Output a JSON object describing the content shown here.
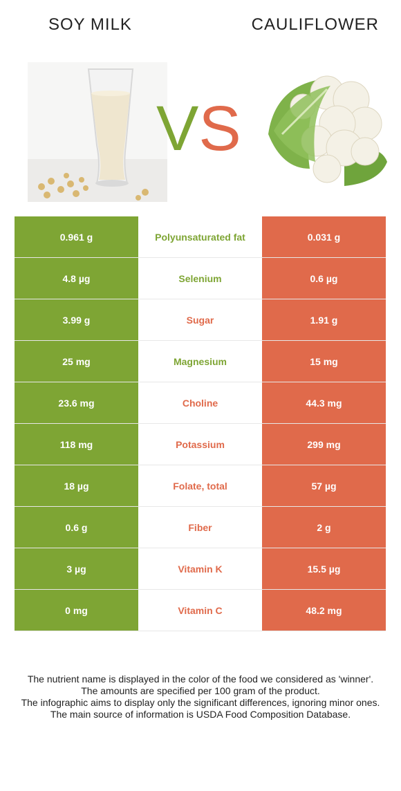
{
  "header": {
    "left_food": "SOY MILK",
    "right_food": "CAULIFLOWER",
    "vs_v": "V",
    "vs_s": "S"
  },
  "colors": {
    "left_winner": "#7ea534",
    "right_winner": "#e06a4b"
  },
  "rows": [
    {
      "left": "0.961 g",
      "name": "Polyunsaturated fat",
      "right": "0.031 g",
      "winner": "left"
    },
    {
      "left": "4.8 µg",
      "name": "Selenium",
      "right": "0.6 µg",
      "winner": "left"
    },
    {
      "left": "3.99 g",
      "name": "Sugar",
      "right": "1.91 g",
      "winner": "right"
    },
    {
      "left": "25 mg",
      "name": "Magnesium",
      "right": "15 mg",
      "winner": "left"
    },
    {
      "left": "23.6 mg",
      "name": "Choline",
      "right": "44.3 mg",
      "winner": "right"
    },
    {
      "left": "118 mg",
      "name": "Potassium",
      "right": "299 mg",
      "winner": "right"
    },
    {
      "left": "18 µg",
      "name": "Folate, total",
      "right": "57 µg",
      "winner": "right"
    },
    {
      "left": "0.6 g",
      "name": "Fiber",
      "right": "2 g",
      "winner": "right"
    },
    {
      "left": "3 µg",
      "name": "Vitamin K",
      "right": "15.5 µg",
      "winner": "right"
    },
    {
      "left": "0 mg",
      "name": "Vitamin C",
      "right": "48.2 mg",
      "winner": "right"
    }
  ],
  "footer": {
    "line1": "The nutrient name is displayed in the color of the food we considered as 'winner'.",
    "line2": "The amounts are specified per 100 gram of the product.",
    "line3": "The infographic aims to display only the significant differences, ignoring minor ones.",
    "line4": "The main source of information is USDA Food Composition Database."
  }
}
